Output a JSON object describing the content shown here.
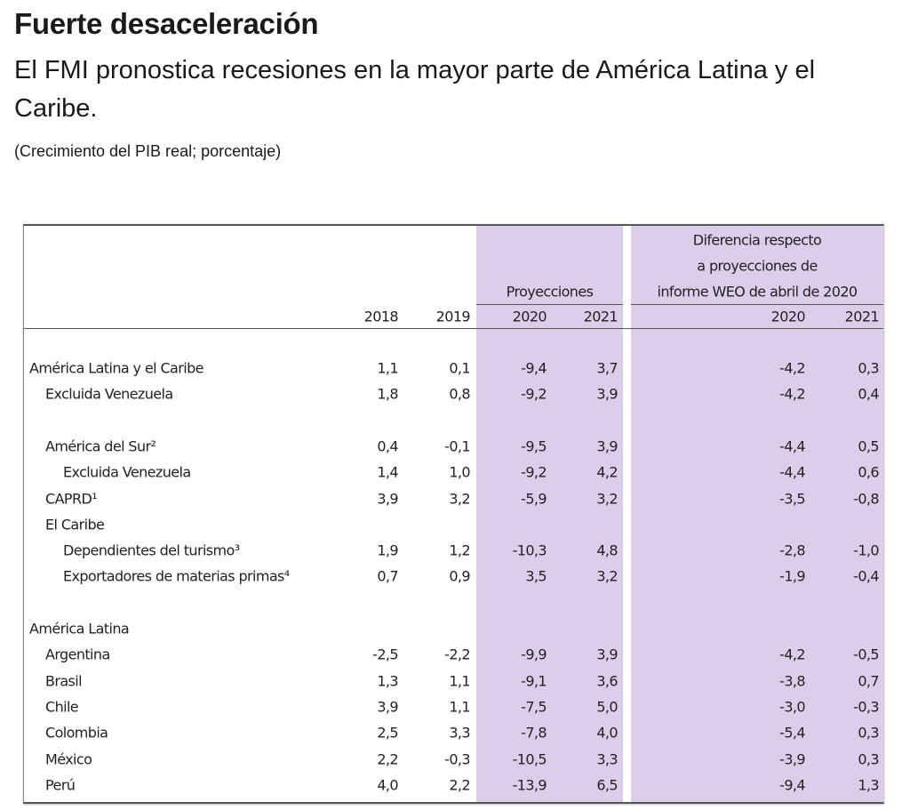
{
  "title": "Fuerte desaceleración",
  "subtitle": "El FMI pronostica recesiones en la mayor parte de América Latina y el Caribe.",
  "note": "(Crecimiento del PIB real; porcentaje)",
  "colors": {
    "projection_band": "#dccdea"
  },
  "table": {
    "group_projections": "Proyecciones",
    "group_difference": [
      "Diferencia respecto",
      "a proyecciones de",
      "informe WEO de abril de 2020"
    ],
    "columns": [
      "2018",
      "2019",
      "2020",
      "2021",
      "2020",
      "2021"
    ],
    "rows": [
      {
        "label": "América Latina y el Caribe",
        "level": 0,
        "values": [
          "1,1",
          "0,1",
          "-9,4",
          "3,7",
          "-4,2",
          "0,3"
        ]
      },
      {
        "label": "Excluida Venezuela",
        "level": 1,
        "values": [
          "1,8",
          "0,8",
          "-9,2",
          "3,9",
          "-4,2",
          "0,4"
        ]
      },
      {
        "label": "",
        "level": 0,
        "values": []
      },
      {
        "label": "América del Sur²",
        "level": 1,
        "values": [
          "0,4",
          "-0,1",
          "-9,5",
          "3,9",
          "-4,4",
          "0,5"
        ]
      },
      {
        "label": "Excluida Venezuela",
        "level": 2,
        "values": [
          "1,4",
          "1,0",
          "-9,2",
          "4,2",
          "-4,4",
          "0,6"
        ]
      },
      {
        "label": "CAPRD¹",
        "level": 1,
        "values": [
          "3,9",
          "3,2",
          "-5,9",
          "3,2",
          "-3,5",
          "-0,8"
        ]
      },
      {
        "label": "El Caribe",
        "level": 1,
        "values": []
      },
      {
        "label": "Dependientes del turismo³",
        "level": 2,
        "values": [
          "1,9",
          "1,2",
          "-10,3",
          "4,8",
          "-2,8",
          "-1,0"
        ]
      },
      {
        "label": "Exportadores de materias primas⁴",
        "level": 2,
        "values": [
          "0,7",
          "0,9",
          "3,5",
          "3,2",
          "-1,9",
          "-0,4"
        ]
      },
      {
        "label": "",
        "level": 0,
        "values": []
      },
      {
        "label": "América Latina",
        "level": 0,
        "values": []
      },
      {
        "label": "Argentina",
        "level": 1,
        "values": [
          "-2,5",
          "-2,2",
          "-9,9",
          "3,9",
          "-4,2",
          "-0,5"
        ]
      },
      {
        "label": "Brasil",
        "level": 1,
        "values": [
          "1,3",
          "1,1",
          "-9,1",
          "3,6",
          "-3,8",
          "0,7"
        ]
      },
      {
        "label": "Chile",
        "level": 1,
        "values": [
          "3,9",
          "1,1",
          "-7,5",
          "5,0",
          "-3,0",
          "-0,3"
        ]
      },
      {
        "label": "Colombia",
        "level": 1,
        "values": [
          "2,5",
          "3,3",
          "-7,8",
          "4,0",
          "-5,4",
          "0,3"
        ]
      },
      {
        "label": "México",
        "level": 1,
        "values": [
          "2,2",
          "-0,3",
          "-10,5",
          "3,3",
          "-3,9",
          "0,3"
        ]
      },
      {
        "label": "Perú",
        "level": 1,
        "values": [
          "4,0",
          "2,2",
          "-13,9",
          "6,5",
          "-9,4",
          "1,3"
        ]
      }
    ]
  }
}
